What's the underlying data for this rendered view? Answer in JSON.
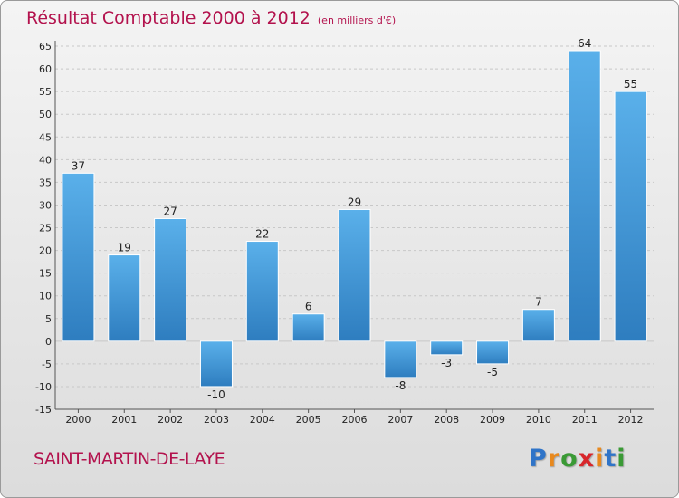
{
  "chart_data": {
    "type": "bar",
    "title": "Résultat Comptable 2000 à 2012",
    "subtitle": "(en milliers d'€)",
    "categories": [
      "2000",
      "2001",
      "2002",
      "2003",
      "2004",
      "2005",
      "2006",
      "2007",
      "2008",
      "2009",
      "2010",
      "2011",
      "2012"
    ],
    "values": [
      37,
      19,
      27,
      -10,
      22,
      6,
      29,
      -8,
      -3,
      -5,
      7,
      64,
      55
    ],
    "ylim": [
      -15,
      65
    ],
    "yticks": [
      65,
      60,
      55,
      50,
      45,
      40,
      35,
      30,
      25,
      20,
      15,
      10,
      5,
      0,
      -5,
      -10,
      -15
    ],
    "grid": true,
    "bar_color_top": "#5ab0ea",
    "bar_color_bottom": "#2e7dbf"
  },
  "footer": {
    "commune": "SAINT-MARTIN-DE-LAYE",
    "logo_letters": [
      {
        "ch": "P",
        "color": "#2f74c8"
      },
      {
        "ch": "r",
        "color": "#e8891e"
      },
      {
        "ch": "o",
        "color": "#3a9a35"
      },
      {
        "ch": "x",
        "color": "#d8262b"
      },
      {
        "ch": "i",
        "color": "#e8891e"
      },
      {
        "ch": "t",
        "color": "#2f74c8"
      },
      {
        "ch": "i",
        "color": "#3a9a35"
      }
    ]
  }
}
